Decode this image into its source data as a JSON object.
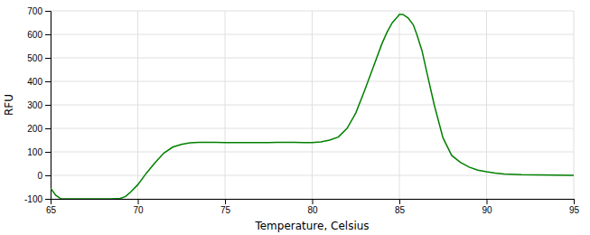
{
  "chart_data": {
    "type": "line",
    "xlabel": "Temperature, Celsius",
    "ylabel": "RFU",
    "x": [
      65.0,
      65.3,
      65.6,
      66.0,
      66.5,
      67.0,
      67.5,
      68.0,
      68.5,
      69.0,
      69.3,
      69.6,
      70.0,
      70.5,
      71.0,
      71.5,
      72.0,
      72.5,
      73.0,
      73.5,
      74.0,
      74.5,
      75.0,
      75.5,
      76.0,
      76.5,
      77.0,
      77.5,
      78.0,
      78.5,
      79.0,
      79.5,
      80.0,
      80.5,
      81.0,
      81.5,
      82.0,
      82.5,
      83.0,
      83.5,
      84.0,
      84.3,
      84.6,
      84.9,
      85.0,
      85.2,
      85.5,
      85.8,
      86.0,
      86.3,
      86.6,
      87.0,
      87.5,
      88.0,
      88.5,
      89.0,
      89.5,
      90.0,
      90.5,
      91.0,
      92.0,
      93.0,
      94.0,
      95.0
    ],
    "values": [
      -55,
      -85,
      -100,
      -100,
      -100,
      -100,
      -100,
      -100,
      -100,
      -98,
      -90,
      -70,
      -40,
      10,
      55,
      95,
      120,
      132,
      138,
      140,
      140,
      140,
      139,
      139,
      139,
      139,
      139,
      139,
      140,
      140,
      140,
      139,
      139,
      142,
      150,
      163,
      200,
      265,
      360,
      460,
      560,
      610,
      650,
      675,
      685,
      685,
      670,
      640,
      600,
      530,
      430,
      300,
      160,
      85,
      55,
      35,
      22,
      15,
      10,
      6,
      3,
      2,
      1,
      0
    ],
    "color": "#008000",
    "xlim": [
      65,
      95
    ],
    "ylim": [
      -100,
      700
    ],
    "xticks": [
      65,
      70,
      75,
      80,
      85,
      90,
      95
    ],
    "yticks": [
      -100,
      0,
      100,
      200,
      300,
      400,
      500,
      600,
      700
    ],
    "grid": true
  }
}
